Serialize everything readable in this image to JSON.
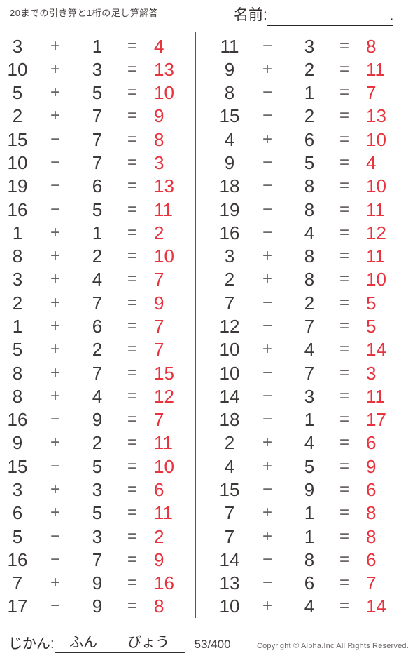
{
  "header": {
    "title": "20までの引き算と1桁の足し算解答",
    "name_label": "名前:",
    "name_line_end": "."
  },
  "problems": {
    "left": [
      {
        "a": "3",
        "op": "+",
        "b": "1",
        "eq": "=",
        "ans": "4"
      },
      {
        "a": "10",
        "op": "+",
        "b": "3",
        "eq": "=",
        "ans": "13"
      },
      {
        "a": "5",
        "op": "+",
        "b": "5",
        "eq": "=",
        "ans": "10"
      },
      {
        "a": "2",
        "op": "+",
        "b": "7",
        "eq": "=",
        "ans": "9"
      },
      {
        "a": "15",
        "op": "−",
        "b": "7",
        "eq": "=",
        "ans": "8"
      },
      {
        "a": "10",
        "op": "−",
        "b": "7",
        "eq": "=",
        "ans": "3"
      },
      {
        "a": "19",
        "op": "−",
        "b": "6",
        "eq": "=",
        "ans": "13"
      },
      {
        "a": "16",
        "op": "−",
        "b": "5",
        "eq": "=",
        "ans": "11"
      },
      {
        "a": "1",
        "op": "+",
        "b": "1",
        "eq": "=",
        "ans": "2"
      },
      {
        "a": "8",
        "op": "+",
        "b": "2",
        "eq": "=",
        "ans": "10"
      },
      {
        "a": "3",
        "op": "+",
        "b": "4",
        "eq": "=",
        "ans": "7"
      },
      {
        "a": "2",
        "op": "+",
        "b": "7",
        "eq": "=",
        "ans": "9"
      },
      {
        "a": "1",
        "op": "+",
        "b": "6",
        "eq": "=",
        "ans": "7"
      },
      {
        "a": "5",
        "op": "+",
        "b": "2",
        "eq": "=",
        "ans": "7"
      },
      {
        "a": "8",
        "op": "+",
        "b": "7",
        "eq": "=",
        "ans": "15"
      },
      {
        "a": "8",
        "op": "+",
        "b": "4",
        "eq": "=",
        "ans": "12"
      },
      {
        "a": "16",
        "op": "−",
        "b": "9",
        "eq": "=",
        "ans": "7"
      },
      {
        "a": "9",
        "op": "+",
        "b": "2",
        "eq": "=",
        "ans": "11"
      },
      {
        "a": "15",
        "op": "−",
        "b": "5",
        "eq": "=",
        "ans": "10"
      },
      {
        "a": "3",
        "op": "+",
        "b": "3",
        "eq": "=",
        "ans": "6"
      },
      {
        "a": "6",
        "op": "+",
        "b": "5",
        "eq": "=",
        "ans": "11"
      },
      {
        "a": "5",
        "op": "−",
        "b": "3",
        "eq": "=",
        "ans": "2"
      },
      {
        "a": "16",
        "op": "−",
        "b": "7",
        "eq": "=",
        "ans": "9"
      },
      {
        "a": "7",
        "op": "+",
        "b": "9",
        "eq": "=",
        "ans": "16"
      },
      {
        "a": "17",
        "op": "−",
        "b": "9",
        "eq": "=",
        "ans": "8"
      }
    ],
    "right": [
      {
        "a": "11",
        "op": "−",
        "b": "3",
        "eq": "=",
        "ans": "8"
      },
      {
        "a": "9",
        "op": "+",
        "b": "2",
        "eq": "=",
        "ans": "11"
      },
      {
        "a": "8",
        "op": "−",
        "b": "1",
        "eq": "=",
        "ans": "7"
      },
      {
        "a": "15",
        "op": "−",
        "b": "2",
        "eq": "=",
        "ans": "13"
      },
      {
        "a": "4",
        "op": "+",
        "b": "6",
        "eq": "=",
        "ans": "10"
      },
      {
        "a": "9",
        "op": "−",
        "b": "5",
        "eq": "=",
        "ans": "4"
      },
      {
        "a": "18",
        "op": "−",
        "b": "8",
        "eq": "=",
        "ans": "10"
      },
      {
        "a": "19",
        "op": "−",
        "b": "8",
        "eq": "=",
        "ans": "11"
      },
      {
        "a": "16",
        "op": "−",
        "b": "4",
        "eq": "=",
        "ans": "12"
      },
      {
        "a": "3",
        "op": "+",
        "b": "8",
        "eq": "=",
        "ans": "11"
      },
      {
        "a": "2",
        "op": "+",
        "b": "8",
        "eq": "=",
        "ans": "10"
      },
      {
        "a": "7",
        "op": "−",
        "b": "2",
        "eq": "=",
        "ans": "5"
      },
      {
        "a": "12",
        "op": "−",
        "b": "7",
        "eq": "=",
        "ans": "5"
      },
      {
        "a": "10",
        "op": "+",
        "b": "4",
        "eq": "=",
        "ans": "14"
      },
      {
        "a": "10",
        "op": "−",
        "b": "7",
        "eq": "=",
        "ans": "3"
      },
      {
        "a": "14",
        "op": "−",
        "b": "3",
        "eq": "=",
        "ans": "11"
      },
      {
        "a": "18",
        "op": "−",
        "b": "1",
        "eq": "=",
        "ans": "17"
      },
      {
        "a": "2",
        "op": "+",
        "b": "4",
        "eq": "=",
        "ans": "6"
      },
      {
        "a": "4",
        "op": "+",
        "b": "5",
        "eq": "=",
        "ans": "9"
      },
      {
        "a": "15",
        "op": "−",
        "b": "9",
        "eq": "=",
        "ans": "6"
      },
      {
        "a": "7",
        "op": "+",
        "b": "1",
        "eq": "=",
        "ans": "8"
      },
      {
        "a": "7",
        "op": "+",
        "b": "1",
        "eq": "=",
        "ans": "8"
      },
      {
        "a": "14",
        "op": "−",
        "b": "8",
        "eq": "=",
        "ans": "6"
      },
      {
        "a": "13",
        "op": "−",
        "b": "6",
        "eq": "=",
        "ans": "7"
      },
      {
        "a": "10",
        "op": "+",
        "b": "4",
        "eq": "=",
        "ans": "14"
      }
    ]
  },
  "footer": {
    "time_label": "じかん:",
    "minutes_label": "ふん",
    "seconds_label": "びょう",
    "page_count": "53/400",
    "copyright": "Copyright ©  Alpha.Inc All Rights Reserved."
  },
  "colors": {
    "answer_red": "#e8323d",
    "text": "#3d3838",
    "operator": "#6b6464"
  }
}
